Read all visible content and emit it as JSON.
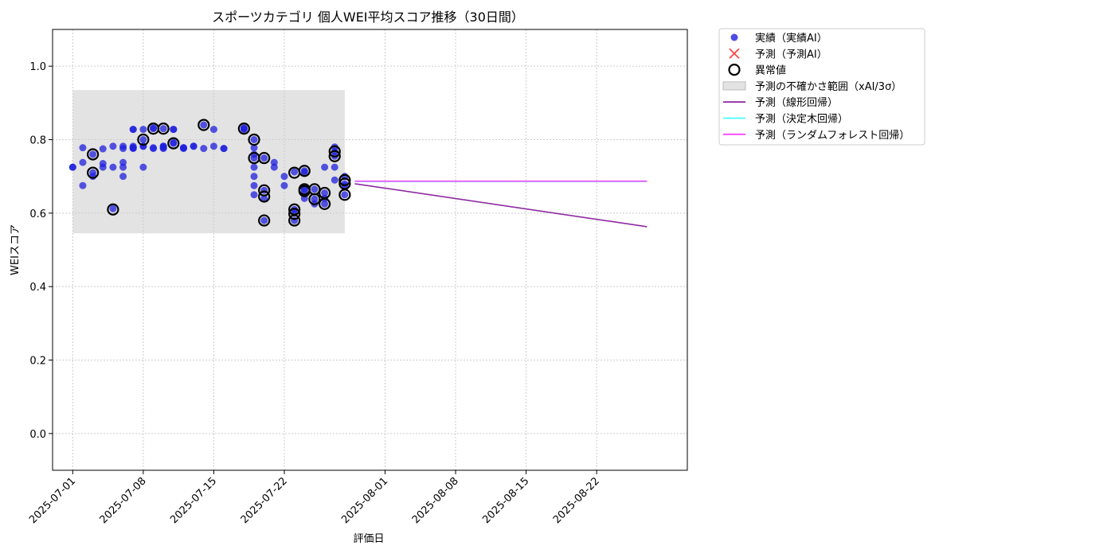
{
  "chart_data": {
    "type": "scatter",
    "title": "スポーツカテゴリ 個人WEI平均スコア推移（30日間）",
    "xlabel": "評価日",
    "ylabel": "WEIスコア",
    "xlim": [
      "2025-06-29",
      "2025-08-31"
    ],
    "ylim": [
      -0.1,
      1.1
    ],
    "xticks": [
      "2025-07-01",
      "2025-07-08",
      "2025-07-15",
      "2025-07-22",
      "2025-08-01",
      "2025-08-08",
      "2025-08-15",
      "2025-08-22"
    ],
    "yticks": [
      "0.0",
      "0.2",
      "0.4",
      "0.6",
      "0.8",
      "1.0"
    ],
    "grid": true,
    "legend_position": "outside-right-top",
    "legend": [
      {
        "label": "実績（実績AI）",
        "kind": "dot",
        "color": "#1f1fdd"
      },
      {
        "label": "予測（予測AI）",
        "kind": "x",
        "color": "#ff4444"
      },
      {
        "label": "異常値",
        "kind": "ring",
        "color": "#000000"
      },
      {
        "label": "予測の不確かさ範囲（xAI/3σ）",
        "kind": "band",
        "color": "#dddddd"
      },
      {
        "label": "予測（線形回帰）",
        "kind": "line",
        "color": "#8e2aa1"
      },
      {
        "label": "予測（決定木回帰）",
        "kind": "line",
        "color": "#44ffff"
      },
      {
        "label": "予測（ランダムフォレスト回帰）",
        "kind": "line",
        "color": "#ff44ff"
      }
    ],
    "uncertainty_band": {
      "x": [
        "2025-07-01",
        "2025-07-28"
      ],
      "y": [
        0.545,
        0.935
      ]
    },
    "actual": [
      [
        "2025-07-01",
        0.725
      ],
      [
        "2025-07-01",
        0.725
      ],
      [
        "2025-07-02",
        0.675
      ],
      [
        "2025-07-02",
        0.738
      ],
      [
        "2025-07-02",
        0.778
      ],
      [
        "2025-07-03",
        0.71
      ],
      [
        "2025-07-03",
        0.7
      ],
      [
        "2025-07-03",
        0.76
      ],
      [
        "2025-07-04",
        0.725
      ],
      [
        "2025-07-04",
        0.735
      ],
      [
        "2025-07-04",
        0.775
      ],
      [
        "2025-07-05",
        0.782
      ],
      [
        "2025-07-05",
        0.612
      ],
      [
        "2025-07-05",
        0.725
      ],
      [
        "2025-07-06",
        0.7
      ],
      [
        "2025-07-06",
        0.725
      ],
      [
        "2025-07-06",
        0.738
      ],
      [
        "2025-07-06",
        0.776
      ],
      [
        "2025-07-06",
        0.782
      ],
      [
        "2025-07-07",
        0.828
      ],
      [
        "2025-07-07",
        0.828
      ],
      [
        "2025-07-07",
        0.776
      ],
      [
        "2025-07-07",
        0.778
      ],
      [
        "2025-07-07",
        0.782
      ],
      [
        "2025-07-07",
        0.778
      ],
      [
        "2025-07-08",
        0.782
      ],
      [
        "2025-07-08",
        0.725
      ],
      [
        "2025-07-08",
        0.828
      ],
      [
        "2025-07-08",
        0.8
      ],
      [
        "2025-07-08",
        0.782
      ],
      [
        "2025-07-09",
        0.778
      ],
      [
        "2025-07-09",
        0.776
      ],
      [
        "2025-07-09",
        0.83
      ],
      [
        "2025-07-09",
        0.832
      ],
      [
        "2025-07-10",
        0.782
      ],
      [
        "2025-07-10",
        0.778
      ],
      [
        "2025-07-10",
        0.83
      ],
      [
        "2025-07-10",
        0.782
      ],
      [
        "2025-07-10",
        0.776
      ],
      [
        "2025-07-11",
        0.828
      ],
      [
        "2025-07-11",
        0.828
      ],
      [
        "2025-07-11",
        0.792
      ],
      [
        "2025-07-11",
        0.79
      ],
      [
        "2025-07-12",
        0.778
      ],
      [
        "2025-07-12",
        0.776
      ],
      [
        "2025-07-12",
        0.778
      ],
      [
        "2025-07-13",
        0.782
      ],
      [
        "2025-07-13",
        0.782
      ],
      [
        "2025-07-14",
        0.84
      ],
      [
        "2025-07-14",
        0.776
      ],
      [
        "2025-07-15",
        0.828
      ],
      [
        "2025-07-15",
        0.782
      ],
      [
        "2025-07-16",
        0.776
      ],
      [
        "2025-07-16",
        0.776
      ],
      [
        "2025-07-18",
        0.828
      ],
      [
        "2025-07-18",
        0.83
      ],
      [
        "2025-07-18",
        0.832
      ],
      [
        "2025-07-19",
        0.8
      ],
      [
        "2025-07-19",
        0.778
      ],
      [
        "2025-07-19",
        0.76
      ],
      [
        "2025-07-19",
        0.75
      ],
      [
        "2025-07-19",
        0.725
      ],
      [
        "2025-07-19",
        0.7
      ],
      [
        "2025-07-19",
        0.675
      ],
      [
        "2025-07-19",
        0.65
      ],
      [
        "2025-07-20",
        0.75
      ],
      [
        "2025-07-20",
        0.64
      ],
      [
        "2025-07-20",
        0.662
      ],
      [
        "2025-07-20",
        0.58
      ],
      [
        "2025-07-21",
        0.738
      ],
      [
        "2025-07-21",
        0.725
      ],
      [
        "2025-07-22",
        0.7
      ],
      [
        "2025-07-22",
        0.675
      ],
      [
        "2025-07-23",
        0.712
      ],
      [
        "2025-07-23",
        0.61
      ],
      [
        "2025-07-23",
        0.6
      ],
      [
        "2025-07-23",
        0.58
      ],
      [
        "2025-07-24",
        0.712
      ],
      [
        "2025-07-24",
        0.715
      ],
      [
        "2025-07-24",
        0.662
      ],
      [
        "2025-07-24",
        0.665
      ],
      [
        "2025-07-24",
        0.64
      ],
      [
        "2025-07-25",
        0.638
      ],
      [
        "2025-07-25",
        0.665
      ],
      [
        "2025-07-25",
        0.625
      ],
      [
        "2025-07-26",
        0.655
      ],
      [
        "2025-07-26",
        0.625
      ],
      [
        "2025-07-26",
        0.64
      ],
      [
        "2025-07-26",
        0.725
      ],
      [
        "2025-07-27",
        0.768
      ],
      [
        "2025-07-27",
        0.78
      ],
      [
        "2025-07-27",
        0.755
      ],
      [
        "2025-07-27",
        0.725
      ],
      [
        "2025-07-27",
        0.69
      ],
      [
        "2025-07-28",
        0.68
      ],
      [
        "2025-07-28",
        0.65
      ],
      [
        "2025-07-28",
        0.7
      ],
      [
        "2025-07-28",
        0.675
      ]
    ],
    "anomalies": [
      [
        "2025-07-03",
        0.71
      ],
      [
        "2025-07-03",
        0.76
      ],
      [
        "2025-07-05",
        0.61
      ],
      [
        "2025-07-08",
        0.8
      ],
      [
        "2025-07-09",
        0.83
      ],
      [
        "2025-07-10",
        0.83
      ],
      [
        "2025-07-11",
        0.79
      ],
      [
        "2025-07-14",
        0.84
      ],
      [
        "2025-07-18",
        0.83
      ],
      [
        "2025-07-19",
        0.8
      ],
      [
        "2025-07-19",
        0.75
      ],
      [
        "2025-07-20",
        0.75
      ],
      [
        "2025-07-20",
        0.645
      ],
      [
        "2025-07-20",
        0.662
      ],
      [
        "2025-07-20",
        0.58
      ],
      [
        "2025-07-23",
        0.71
      ],
      [
        "2025-07-23",
        0.61
      ],
      [
        "2025-07-23",
        0.598
      ],
      [
        "2025-07-23",
        0.58
      ],
      [
        "2025-07-24",
        0.715
      ],
      [
        "2025-07-24",
        0.665
      ],
      [
        "2025-07-24",
        0.66
      ],
      [
        "2025-07-25",
        0.638
      ],
      [
        "2025-07-25",
        0.665
      ],
      [
        "2025-07-26",
        0.625
      ],
      [
        "2025-07-26",
        0.655
      ],
      [
        "2025-07-27",
        0.768
      ],
      [
        "2025-07-27",
        0.755
      ],
      [
        "2025-07-28",
        0.69
      ],
      [
        "2025-07-28",
        0.68
      ],
      [
        "2025-07-28",
        0.65
      ]
    ],
    "lines": [
      {
        "name": "予測（線形回帰）",
        "color": "#8e2aa1",
        "x": [
          "2025-07-29",
          "2025-08-27"
        ],
        "y": [
          0.68,
          0.563
        ]
      },
      {
        "name": "予測（決定木回帰）",
        "color": "#44ffff",
        "x": [
          "2025-07-29",
          "2025-08-27"
        ],
        "y": [
          0.686,
          0.686
        ]
      },
      {
        "name": "予測（ランダムフォレスト回帰）",
        "color": "#ff44ff",
        "x": [
          "2025-07-29",
          "2025-08-27"
        ],
        "y": [
          0.687,
          0.687
        ]
      }
    ]
  }
}
